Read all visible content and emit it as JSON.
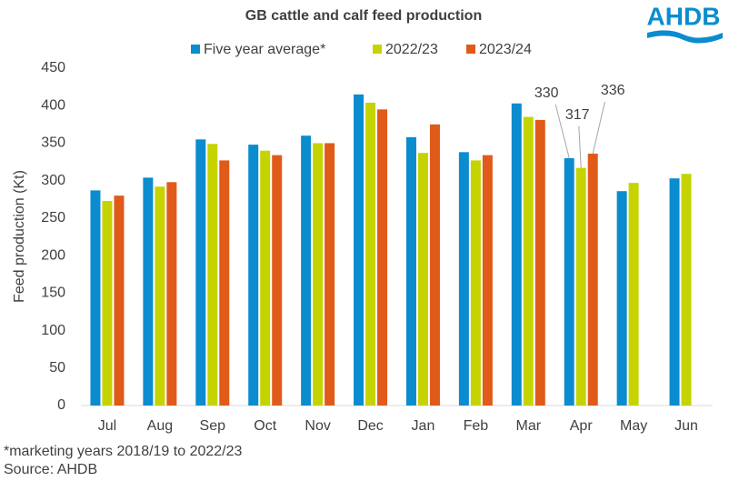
{
  "chart_data": {
    "type": "bar",
    "title": "GB cattle and calf feed production",
    "y_label": "Feed production (Kt)",
    "categories": [
      "Jul",
      "Aug",
      "Sep",
      "Oct",
      "Nov",
      "Dec",
      "Jan",
      "Feb",
      "Mar",
      "Apr",
      "May",
      "Jun"
    ],
    "series": [
      {
        "name": "Five year average*",
        "color": "#0b8ccf",
        "values": [
          287,
          304,
          355,
          348,
          360,
          415,
          358,
          338,
          403,
          330,
          286,
          303
        ],
        "value_labels": [
          null,
          null,
          null,
          null,
          null,
          null,
          null,
          null,
          null,
          "330",
          null,
          null
        ]
      },
      {
        "name": "2022/23",
        "color": "#c5d400",
        "values": [
          273,
          292,
          349,
          340,
          350,
          404,
          337,
          327,
          385,
          317,
          297,
          309
        ],
        "value_labels": [
          null,
          null,
          null,
          null,
          null,
          null,
          null,
          null,
          null,
          "317",
          null,
          null
        ]
      },
      {
        "name": "2023/24",
        "color": "#e05a1a",
        "values": [
          280,
          298,
          327,
          334,
          350,
          395,
          375,
          334,
          381,
          336,
          null,
          null
        ],
        "value_labels": [
          null,
          null,
          null,
          null,
          null,
          null,
          null,
          null,
          null,
          "336",
          null,
          null
        ]
      }
    ],
    "ylim": [
      0,
      450
    ],
    "yticks": [
      0,
      50,
      100,
      150,
      200,
      250,
      300,
      350,
      400,
      450
    ],
    "grid": false,
    "legend": "top",
    "footnotes": [
      "*marketing years 2018/19 to 2022/23",
      "Source: AHDB"
    ],
    "logo": "AHDB"
  }
}
